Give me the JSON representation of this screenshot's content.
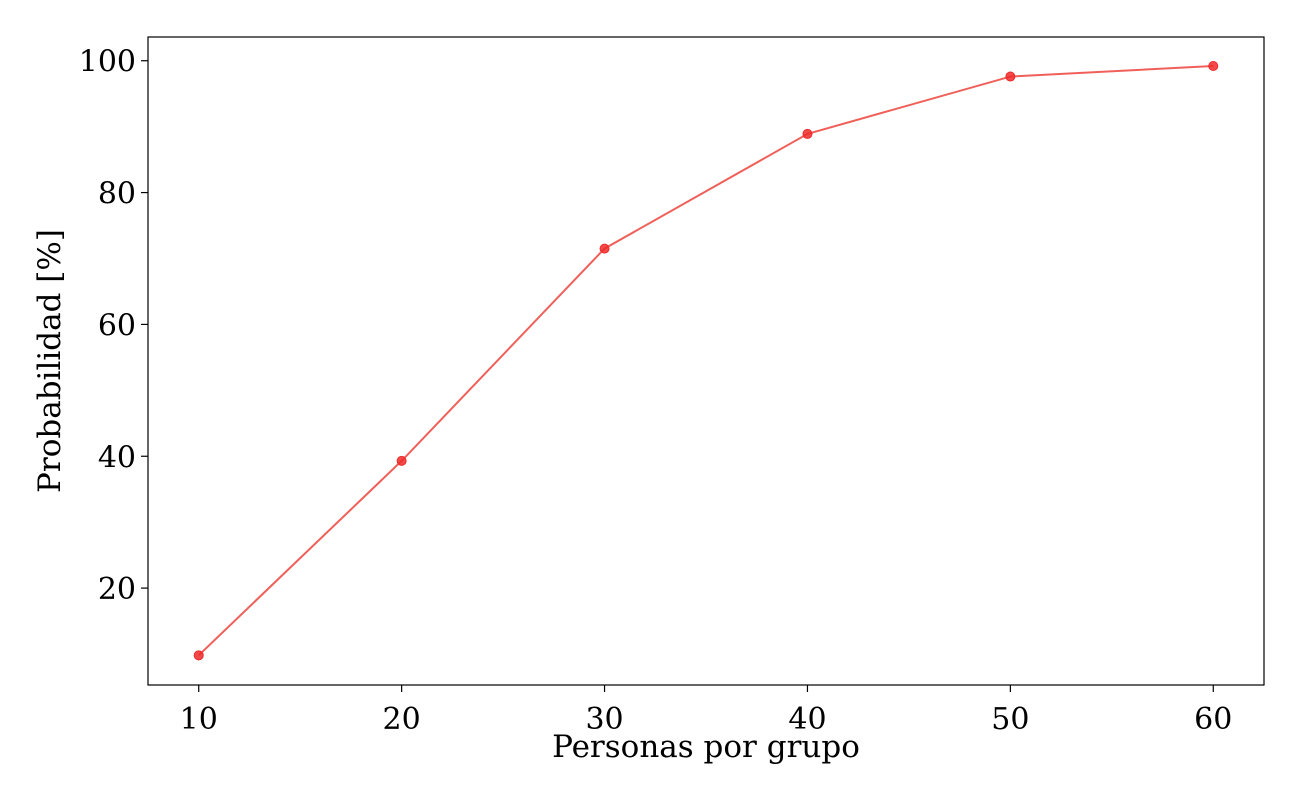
{
  "chart_data": {
    "type": "line",
    "title": "",
    "xlabel": "Personas por grupo",
    "ylabel": "Probabilidad [%]",
    "xlim": [
      7.5,
      62.5
    ],
    "ylim": [
      5.3,
      103.6
    ],
    "xticks": [
      10,
      20,
      30,
      40,
      50,
      60
    ],
    "yticks": [
      20,
      40,
      60,
      80,
      100
    ],
    "xtick_labels": [
      "10",
      "20",
      "30",
      "40",
      "50",
      "60"
    ],
    "ytick_labels": [
      "20",
      "40",
      "60",
      "80",
      "100"
    ],
    "grid": false,
    "legend": "none",
    "line_color": "#f0605a",
    "marker_color": "#ee2a2a",
    "series": [
      {
        "x": [
          10,
          20,
          30,
          40,
          50,
          60
        ],
        "values": [
          9.8,
          39.3,
          71.5,
          88.9,
          97.6,
          99.2
        ]
      }
    ]
  }
}
